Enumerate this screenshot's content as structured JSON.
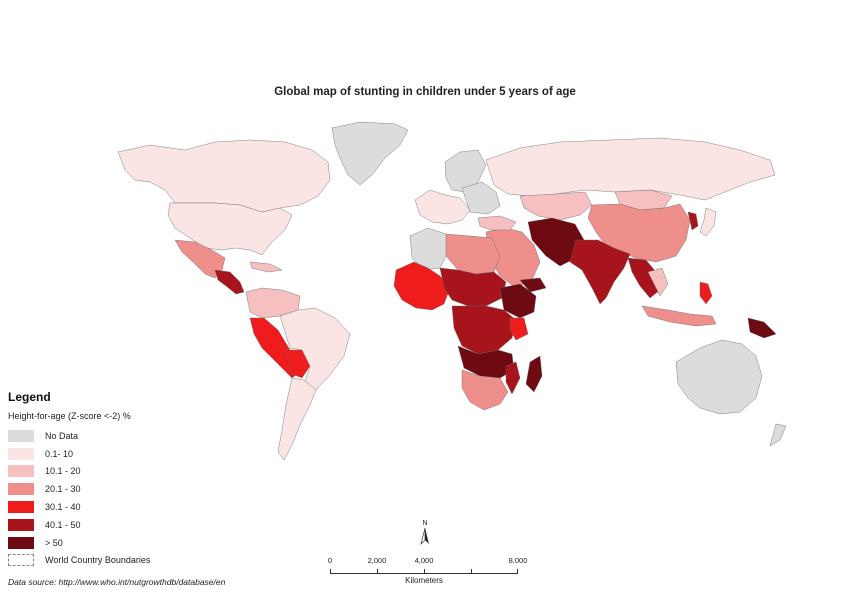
{
  "title": "Global map of stunting in children under 5 years of age",
  "colors": {
    "no_data": "#dcdcdc",
    "c_0_10": "#fbe4e4",
    "c_10_20": "#f6c0c0",
    "c_20_30": "#ef8f8c",
    "c_30_40": "#ee1c1c",
    "c_40_50": "#a8141c",
    "c_over_50": "#6e0a12",
    "outline": "#555555"
  },
  "legend": {
    "title": "Legend",
    "subtitle": "Height-for-age (Z-score <-2) %",
    "items": [
      {
        "label": "No Data",
        "color": "#dcdcdc"
      },
      {
        "label": "0.1- 10",
        "color": "#fbe4e4"
      },
      {
        "label": "10.1 - 20",
        "color": "#f6c0c0"
      },
      {
        "label": "20.1 - 30",
        "color": "#ef8f8c"
      },
      {
        "label": "30.1 - 40",
        "color": "#ee1c1c"
      },
      {
        "label": "40.1 - 50",
        "color": "#a8141c"
      },
      {
        "label": "> 50",
        "color": "#6e0a12"
      }
    ],
    "boundary_label": "World Country Boundaries"
  },
  "north_label": "N",
  "scale": {
    "ticks": [
      "0",
      "2,000",
      "4,000",
      "8,000"
    ],
    "unit": "Kilometers"
  },
  "source": "Data source: http://www.who.int/nutgrowthdb/database/en"
}
